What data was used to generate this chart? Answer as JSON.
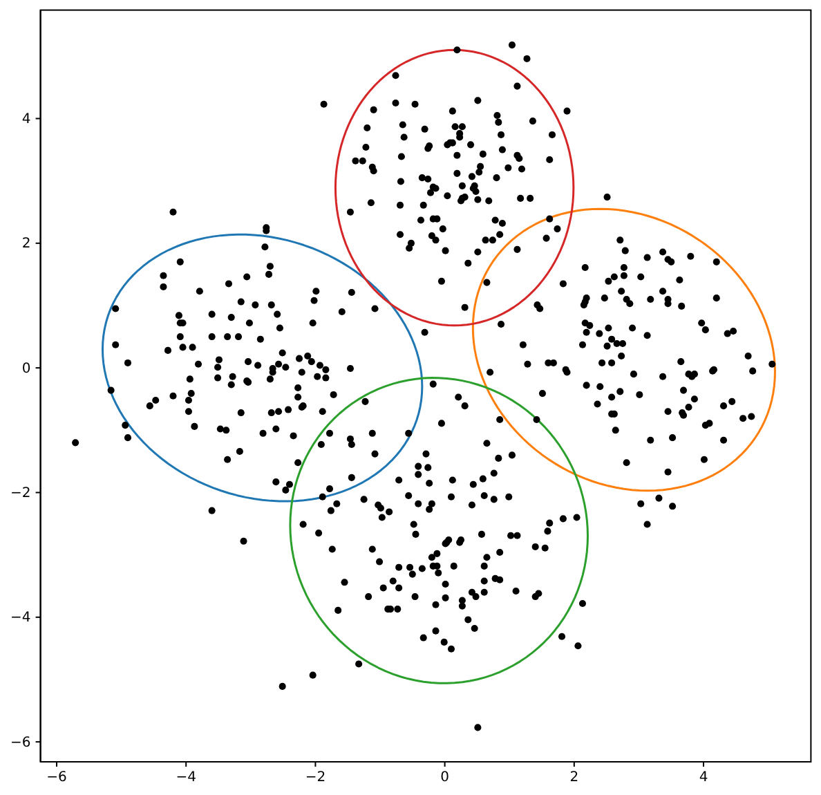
{
  "chart_data": {
    "type": "scatter",
    "xlim": [
      -6.25,
      5.66
    ],
    "ylim": [
      -6.32,
      5.74
    ],
    "xticks": [
      {
        "value": -6,
        "label": "−6"
      },
      {
        "value": -4,
        "label": "−4"
      },
      {
        "value": -2,
        "label": "−2"
      },
      0,
      2,
      4
    ],
    "yticks": [
      {
        "value": -6,
        "label": "−6"
      },
      {
        "value": -4,
        "label": "−4"
      },
      {
        "value": -2,
        "label": "−2"
      },
      0,
      2,
      4
    ],
    "series": [
      {
        "color": "#000000",
        "marker": "circle",
        "x": [
          -1.87,
          -0.76,
          -0.76,
          -1.1,
          -1.2,
          -1.22,
          -1.38,
          -1.27,
          -1.12,
          -1.1,
          -1.14,
          -0.69,
          -1.46,
          -0.69,
          -0.68,
          -0.67,
          -0.65,
          -0.63,
          -4.2,
          -2.76,
          -2.76,
          -2.78,
          -4.09,
          -2.7,
          -2.72,
          -4.35,
          -4.35,
          -3.06,
          -3.34,
          -3.79,
          -1.99,
          -1.44,
          -2.02,
          -3.15,
          -2.93,
          -2.68,
          -5.09,
          -1.08,
          -1.59,
          -2.59,
          -3.6,
          -4.11,
          -3.3,
          -4.09,
          -4.05,
          -3.02,
          -2.04,
          -2.55,
          -4.09,
          -3.6,
          -3.36,
          -3.19,
          -2.85,
          -5.09,
          -4.05,
          -3.9,
          -4.28,
          -2.51,
          -4.9,
          -3.81,
          -3.49,
          -3.51,
          -3.04,
          -2.89,
          -2.66,
          -2.66,
          -2.57,
          -2.46,
          -2.25,
          -2.12,
          -2.06,
          -2.21,
          -1.93,
          -1.84,
          -1.46,
          -5.16,
          -3.94,
          -3.51,
          -3.28,
          -3.3,
          -3.06,
          -3.04,
          -2.7,
          -1.97,
          -1.84,
          -2.27,
          -3.92,
          -4.2,
          -4.47,
          -4.56,
          -3.96,
          -2.27,
          -1.72,
          -2.21,
          -2.19,
          -2.42,
          -2.57,
          -2.68,
          -3.15,
          -3.96,
          -1.89,
          -1.23,
          -4.94,
          -4.9,
          -3.87,
          -3.47,
          -3.38,
          -2.81,
          -2.61,
          -2.34,
          -1.78,
          -1.12,
          -5.71,
          -1.91,
          -1.46,
          -1.44,
          -1.08,
          -3.36,
          -3.17,
          -2.27,
          -1.44,
          -0.71,
          -2.61,
          -2.4,
          -2.46,
          -1.78,
          -1.89,
          -1.25,
          -1.03,
          -0.99,
          -0.86,
          -0.97,
          -1.76,
          -1.67,
          -3.6,
          -2.19,
          -1.95,
          -3.11,
          -1.74,
          -1.12,
          -1.01,
          -0.71,
          -1.55,
          -0.8,
          -0.95,
          -0.71,
          -1.18,
          -1.65,
          -0.88,
          -0.84,
          -0.73,
          -1.33,
          -2.04,
          -2.51,
          0.19,
          1.04,
          1.27,
          1.12,
          -0.46,
          0.51,
          0.12,
          0.81,
          0.83,
          1.89,
          0.16,
          0.27,
          -0.31,
          1.36,
          0.23,
          0.23,
          0.87,
          1.66,
          -0.24,
          -0.26,
          0.04,
          0.08,
          0.12,
          0.4,
          0.89,
          0.59,
          0.19,
          1.12,
          1.15,
          1.62,
          0.55,
          0.53,
          0.98,
          1.19,
          0.19,
          0.42,
          0.8,
          -0.35,
          -0.26,
          0.27,
          0.46,
          0.48,
          0.44,
          -0.18,
          -0.14,
          -0.22,
          0.04,
          0.27,
          0.31,
          0.25,
          0.51,
          0.68,
          1.17,
          1.32,
          -0.33,
          2.51,
          -0.18,
          -0.12,
          -0.37,
          0.78,
          0.89,
          1.62,
          -0.03,
          1.74,
          0.85,
          -0.2,
          -0.14,
          0.63,
          0.74,
          1.57,
          -0.52,
          -0.55,
          0.01,
          1.12,
          0.51,
          0.36,
          -0.05,
          0.65,
          0.31,
          0.87,
          -0.31,
          2.71,
          2.79,
          3.13,
          3.37,
          3.45,
          3.5,
          3.8,
          4.2,
          2.17,
          2.77,
          2.62,
          2.53,
          2.77,
          3.03,
          3.63,
          1.83,
          2.73,
          3.37,
          2.47,
          2.19,
          2.17,
          2.15,
          2.81,
          2.86,
          3.18,
          3.45,
          3.45,
          3.66,
          4.2,
          1.43,
          1.47,
          2.17,
          2.24,
          2.19,
          2.39,
          2.53,
          2.9,
          3.13,
          2.58,
          2.66,
          2.75,
          2.51,
          2.13,
          3.97,
          4.03,
          4.37,
          4.46,
          1.21,
          2.73,
          2.43,
          2.58,
          3.65,
          4.69,
          0.7,
          1.28,
          1.6,
          1.68,
          1.87,
          1.89,
          2.92,
          3.37,
          3.77,
          3.82,
          3.86,
          4.14,
          4.16,
          4.76,
          5.06,
          2.19,
          2.4,
          -0.18,
          1.51,
          2.71,
          3.01,
          2.58,
          2.36,
          3.69,
          3.86,
          3.77,
          3.45,
          3.67,
          3.69,
          4.31,
          4.44,
          4.61,
          4.74,
          2.58,
          2.62,
          2.64,
          4.03,
          4.09,
          3.18,
          3.52,
          4.31,
          4.01,
          2.81,
          3.45,
          3.03,
          3.31,
          3.52,
          3.13,
          0.21,
          0.31,
          -0.05,
          0.85,
          1.42,
          -0.56,
          0.65,
          -0.29,
          0.83,
          1.04,
          -0.41,
          -0.26,
          -0.41,
          0.76,
          0.59,
          0.12,
          -0.24,
          0.44,
          -0.56,
          0.1,
          0.61,
          0.76,
          0.99,
          -0.41,
          -0.2,
          -0.24,
          0.42,
          1.83,
          2.04,
          1.62,
          1.59,
          -0.48,
          -0.45,
          0.57,
          1.02,
          1.12,
          0.06,
          0.03,
          0.01,
          0.25,
          0.23,
          1.4,
          1.55,
          0.85,
          -0.12,
          -0.2,
          0.65,
          -0.18,
          -0.12,
          -0.54,
          -0.35,
          0.14,
          0.61,
          -0.1,
          -0.5,
          0.78,
          0.85,
          0.01,
          0.61,
          0.61,
          1.1,
          1.4,
          1.45,
          0.42,
          0.48,
          -0.46,
          0.01,
          -0.14,
          0.27,
          0.27,
          2.13,
          0.36,
          0.46,
          -0.33,
          -0.14,
          -0.01,
          0.1,
          1.81,
          2.06,
          0.51
        ],
        "values": [
          4.23,
          4.69,
          4.25,
          4.14,
          3.85,
          3.54,
          3.32,
          3.32,
          3.22,
          3.16,
          2.65,
          2.61,
          2.5,
          2.14,
          2.99,
          3.39,
          3.9,
          3.7,
          2.5,
          2.25,
          2.2,
          1.94,
          1.7,
          1.63,
          1.5,
          1.48,
          1.3,
          1.46,
          1.35,
          1.23,
          1.23,
          1.21,
          1.08,
          1.06,
          1.01,
          1.01,
          0.95,
          0.95,
          0.9,
          0.86,
          0.86,
          0.84,
          0.81,
          0.72,
          0.72,
          0.72,
          0.72,
          0.64,
          0.5,
          0.5,
          0.5,
          0.5,
          0.46,
          0.37,
          0.33,
          0.33,
          0.28,
          0.24,
          0.08,
          0.06,
          0.13,
          0.01,
          0.1,
          0.04,
          -0.01,
          -0.07,
          0.06,
          0.01,
          0.15,
          0.19,
          0.1,
          -0.07,
          0.04,
          -0.03,
          -0.01,
          -0.36,
          -0.18,
          -0.16,
          -0.14,
          -0.27,
          -0.21,
          -0.23,
          -0.18,
          -0.14,
          -0.16,
          -0.32,
          -0.41,
          -0.45,
          -0.52,
          -0.61,
          -0.52,
          -0.47,
          -0.43,
          -0.63,
          -0.61,
          -0.67,
          -0.7,
          -0.72,
          -0.72,
          -0.7,
          -0.7,
          -0.54,
          -0.92,
          -1.12,
          -0.94,
          -0.98,
          -1.0,
          -1.05,
          -0.98,
          -1.09,
          -1.05,
          -1.05,
          -1.2,
          -1.23,
          -1.14,
          -1.23,
          -1.38,
          -1.47,
          -1.34,
          -1.52,
          -1.76,
          -1.8,
          -1.83,
          -1.87,
          -1.96,
          -1.94,
          -2.07,
          -2.11,
          -2.2,
          -2.25,
          -2.31,
          -2.4,
          -2.29,
          -2.18,
          -2.29,
          -2.51,
          -2.65,
          -2.78,
          -2.91,
          -2.91,
          -3.11,
          -3.2,
          -3.44,
          -3.42,
          -3.53,
          -3.53,
          -3.67,
          -3.89,
          -3.87,
          -3.87,
          -3.87,
          -4.75,
          -4.93,
          -5.11,
          5.1,
          5.18,
          4.96,
          4.52,
          4.23,
          4.29,
          4.12,
          4.05,
          3.94,
          4.12,
          3.87,
          3.87,
          3.83,
          3.96,
          3.76,
          3.7,
          3.74,
          3.74,
          3.56,
          3.52,
          3.58,
          3.61,
          3.61,
          3.58,
          3.5,
          3.43,
          3.41,
          3.41,
          3.36,
          3.34,
          3.23,
          3.14,
          3.21,
          3.19,
          3.12,
          3.07,
          3.05,
          3.05,
          3.03,
          2.92,
          2.92,
          2.83,
          2.88,
          2.9,
          2.88,
          2.81,
          2.76,
          2.72,
          2.74,
          2.68,
          2.7,
          2.68,
          2.72,
          2.72,
          2.61,
          2.74,
          2.39,
          2.39,
          2.37,
          2.37,
          2.32,
          2.39,
          2.23,
          2.23,
          2.14,
          2.12,
          2.05,
          2.05,
          2.05,
          2.08,
          2.0,
          1.92,
          1.88,
          1.9,
          1.86,
          1.68,
          1.39,
          1.37,
          0.97,
          0.7,
          0.57,
          2.05,
          1.88,
          1.77,
          1.86,
          1.74,
          1.7,
          1.79,
          1.7,
          1.61,
          1.61,
          1.46,
          1.39,
          1.48,
          1.46,
          1.41,
          1.35,
          1.23,
          1.23,
          1.12,
          1.12,
          1.06,
          1.01,
          1.1,
          1.03,
          1.1,
          1.1,
          1.03,
          0.99,
          1.12,
          1.01,
          0.95,
          0.72,
          0.68,
          0.57,
          0.55,
          0.64,
          0.64,
          0.52,
          0.46,
          0.39,
          0.39,
          0.35,
          0.37,
          0.72,
          0.61,
          0.55,
          0.59,
          0.37,
          0.19,
          0.08,
          0.08,
          0.1,
          0.19,
          -0.07,
          0.06,
          0.08,
          0.08,
          -0.03,
          -0.07,
          -0.1,
          -0.14,
          -0.1,
          -0.14,
          -0.1,
          -0.05,
          -0.03,
          -0.05,
          0.06,
          -0.28,
          -0.3,
          -0.26,
          -0.41,
          -0.38,
          -0.43,
          -0.47,
          -0.58,
          -0.36,
          -0.5,
          -0.63,
          -0.7,
          -0.72,
          -0.76,
          -0.61,
          -0.54,
          -0.81,
          -0.78,
          -0.74,
          -0.74,
          -1.0,
          -0.92,
          -0.89,
          -1.16,
          -1.12,
          -1.16,
          -1.47,
          -1.52,
          -1.67,
          -2.18,
          -2.09,
          -2.22,
          -2.51,
          -0.47,
          -0.61,
          -0.89,
          -0.83,
          -0.83,
          -1.05,
          -1.21,
          -1.38,
          -1.45,
          -1.4,
          -1.58,
          -1.6,
          -1.71,
          -1.69,
          -1.78,
          -1.8,
          -1.85,
          -1.87,
          -2.05,
          -2.07,
          -2.05,
          -2.11,
          -2.07,
          -2.18,
          -2.18,
          -2.27,
          -2.2,
          -2.42,
          -2.4,
          -2.49,
          -2.62,
          -2.51,
          -2.67,
          -2.67,
          -2.69,
          -2.69,
          -2.76,
          -2.8,
          -2.82,
          -2.76,
          -2.8,
          -2.87,
          -2.89,
          -2.96,
          -2.98,
          -3.04,
          -3.04,
          -3.18,
          -3.18,
          -3.2,
          -3.22,
          -3.18,
          -3.18,
          -3.29,
          -3.31,
          -3.38,
          -3.4,
          -3.47,
          -3.42,
          -3.6,
          -3.58,
          -3.67,
          -3.62,
          -3.6,
          -3.67,
          -3.67,
          -3.69,
          -3.8,
          -3.73,
          -3.82,
          -3.78,
          -4.04,
          -4.18,
          -4.33,
          -4.22,
          -4.4,
          -4.51,
          -4.31,
          -4.46,
          -5.77
        ]
      }
    ]
  }
}
